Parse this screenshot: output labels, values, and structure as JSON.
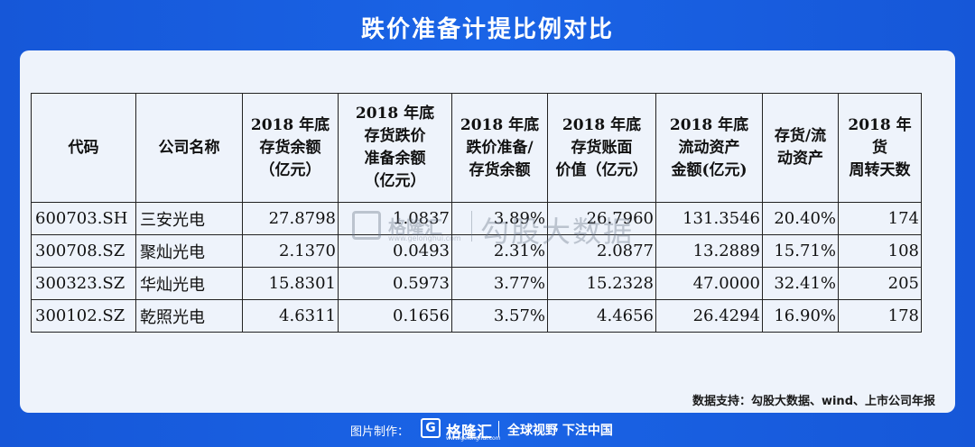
{
  "title": "跌价准备计提比例对比",
  "table": {
    "headers": [
      "代码",
      "公司名称",
      "2018 年底\n存货余额\n（亿元）",
      "2018 年底\n存货跌价\n准备余额\n（亿元）",
      "2018 年底\n跌价准备/\n存货余额",
      "2018 年底\n存货账面\n价值（亿元）",
      "2018 年底\n流动资产\n金额(亿元)",
      "存货/流\n动资产",
      "2018 年货\n周转天数"
    ],
    "rows": [
      [
        "600703.SH",
        "三安光电",
        "27.8798",
        "1.0837",
        "3.89%",
        "26.7960",
        "131.3546",
        "20.40%",
        "174"
      ],
      [
        "300708.SZ",
        "聚灿光电",
        "2.1370",
        "0.0493",
        "2.31%",
        "2.0877",
        "13.2889",
        "15.71%",
        "108"
      ],
      [
        "300323.SZ",
        "华灿光电",
        "15.8301",
        "0.5973",
        "3.77%",
        "15.2328",
        "47.0000",
        "32.41%",
        "205"
      ],
      [
        "300102.SZ",
        "乾照光电",
        "4.6311",
        "0.1656",
        "3.57%",
        "4.4656",
        "26.4294",
        "16.90%",
        "178"
      ]
    ]
  },
  "watermark": {
    "logo_char": "G",
    "brand": "格隆汇",
    "url": "www.gelonghui.com",
    "text": "勾股大数据"
  },
  "source": "数据支持：勾股大数据、wind、上市公司年报",
  "footer": {
    "label": "图片制作：",
    "logo_char": "G",
    "brand": "格隆汇",
    "url": "www.gelonghui.com",
    "slogan": "全球视野 下注中国"
  },
  "colors": {
    "background": "#1a5fe0",
    "card": "#eef3fb",
    "text": "#111111"
  }
}
